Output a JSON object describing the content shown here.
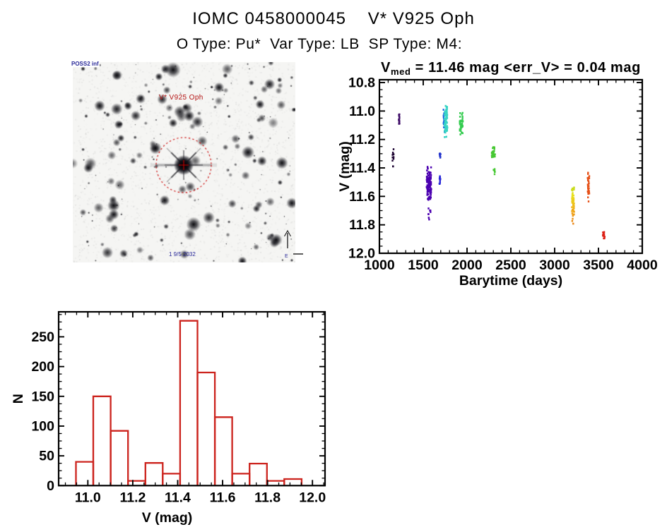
{
  "page": {
    "background": "#ffffff",
    "title": "IOMC 0458000045    V* V925 Oph",
    "subtitle": "O Type: Pu*  Var Type: LB  SP Type: M4:"
  },
  "finder_chart": {
    "survey_label": "POSS2 inf",
    "target_label": "V* V925 Oph",
    "epoch_label": "1 9/5 2032",
    "east_label": "E",
    "marker_color": "#cc0000",
    "target_label_color": "#b51414",
    "annotation_color": "#2a2a99"
  },
  "chart_data": [
    {
      "type": "scatter",
      "name": "light-curve",
      "title_main": "V",
      "title_sub": "med",
      "title_rest": " = 11.46 mag <err_V> = 0.04 mag",
      "xlabel": "Barytime (days)",
      "ylabel": "V (mag)",
      "xlim": [
        1000,
        4000
      ],
      "ylim": [
        10.78,
        12.0
      ],
      "y_axis_direction": "inverted (magnitudes increase downward)",
      "xticks": [
        1000,
        1500,
        2000,
        2500,
        3000,
        3500,
        4000
      ],
      "yticks": [
        10.8,
        11.0,
        11.2,
        11.4,
        11.6,
        11.8,
        12.0
      ],
      "x_minor_step": 100,
      "y_minor_step": 0.05,
      "axes_color": "#000000",
      "legend": "none",
      "grid": false,
      "clusters": [
        {
          "name": "epoch-01",
          "t": [
            1148,
            1162
          ],
          "v": [
            11.26,
            11.37
          ],
          "color": "#1e0533",
          "n": 9
        },
        {
          "name": "epoch-01b",
          "t": [
            1150,
            1158
          ],
          "v": [
            11.38,
            11.41
          ],
          "color": "#1e0533",
          "n": 2
        },
        {
          "name": "epoch-02",
          "t": [
            1221,
            1229
          ],
          "v": [
            11.02,
            11.1
          ],
          "color": "#3c0a66",
          "n": 14
        },
        {
          "name": "epoch-03",
          "t": [
            1538,
            1592
          ],
          "v": [
            11.38,
            11.66
          ],
          "color": "#4b00b0",
          "n": 115
        },
        {
          "name": "epoch-03b",
          "t": [
            1552,
            1585
          ],
          "v": [
            11.63,
            11.77
          ],
          "color": "#4b00b0",
          "n": 9
        },
        {
          "name": "epoch-04",
          "t": [
            1686,
            1700
          ],
          "v": [
            11.29,
            11.33
          ],
          "color": "#2334cc",
          "n": 10
        },
        {
          "name": "epoch-05",
          "t": [
            1681,
            1696
          ],
          "v": [
            11.44,
            11.53
          ],
          "color": "#2a2ad8",
          "n": 16
        },
        {
          "name": "epoch-06a",
          "t": [
            1731,
            1747
          ],
          "v": [
            10.97,
            11.16
          ],
          "color": "#1b6ae0",
          "n": 28
        },
        {
          "name": "epoch-06b",
          "t": [
            1743,
            1776
          ],
          "v": [
            10.93,
            11.2
          ],
          "color": "#38d4c4",
          "n": 75
        },
        {
          "name": "epoch-07",
          "t": [
            1916,
            1952
          ],
          "v": [
            11.0,
            11.19
          ],
          "color": "#35cc50",
          "n": 40
        },
        {
          "name": "epoch-08",
          "t": [
            2282,
            2320
          ],
          "v": [
            11.23,
            11.36
          ],
          "color": "#46c832",
          "n": 26
        },
        {
          "name": "epoch-08b",
          "t": [
            2294,
            2318
          ],
          "v": [
            11.39,
            11.46
          ],
          "color": "#46c832",
          "n": 7
        },
        {
          "name": "epoch-09",
          "t": [
            3196,
            3224
          ],
          "v": [
            11.48,
            11.81
          ],
          "color_stops": [
            "#9cd41f",
            "#e8e11c",
            "#f0a818",
            "#e87f18"
          ],
          "n": 55
        },
        {
          "name": "epoch-10",
          "t": [
            3374,
            3396
          ],
          "v": [
            11.42,
            11.65
          ],
          "color": "#e65118",
          "n": 32
        },
        {
          "name": "epoch-11",
          "t": [
            3550,
            3572
          ],
          "v": [
            11.83,
            11.92
          ],
          "color": "#dc1f14",
          "n": 14
        }
      ]
    },
    {
      "type": "bar",
      "name": "v-magnitude-histogram",
      "xlabel": "V (mag)",
      "ylabel": "N",
      "bar_color": "#cc231d",
      "axes_color": "#000000",
      "xlim": [
        10.87,
        12.056
      ],
      "ylim": [
        0,
        292
      ],
      "xticks": [
        11.0,
        11.2,
        11.4,
        11.6,
        11.8,
        12.0
      ],
      "yticks": [
        0,
        50,
        100,
        150,
        200,
        250
      ],
      "x_minor_step": 0.05,
      "y_minor_step": 12.5,
      "bin_start": 10.947,
      "bin_width": 0.0773,
      "counts": [
        40,
        150,
        92,
        8,
        38,
        20,
        277,
        190,
        115,
        20,
        37,
        8,
        11
      ],
      "grid": false,
      "legend": "none"
    }
  ]
}
